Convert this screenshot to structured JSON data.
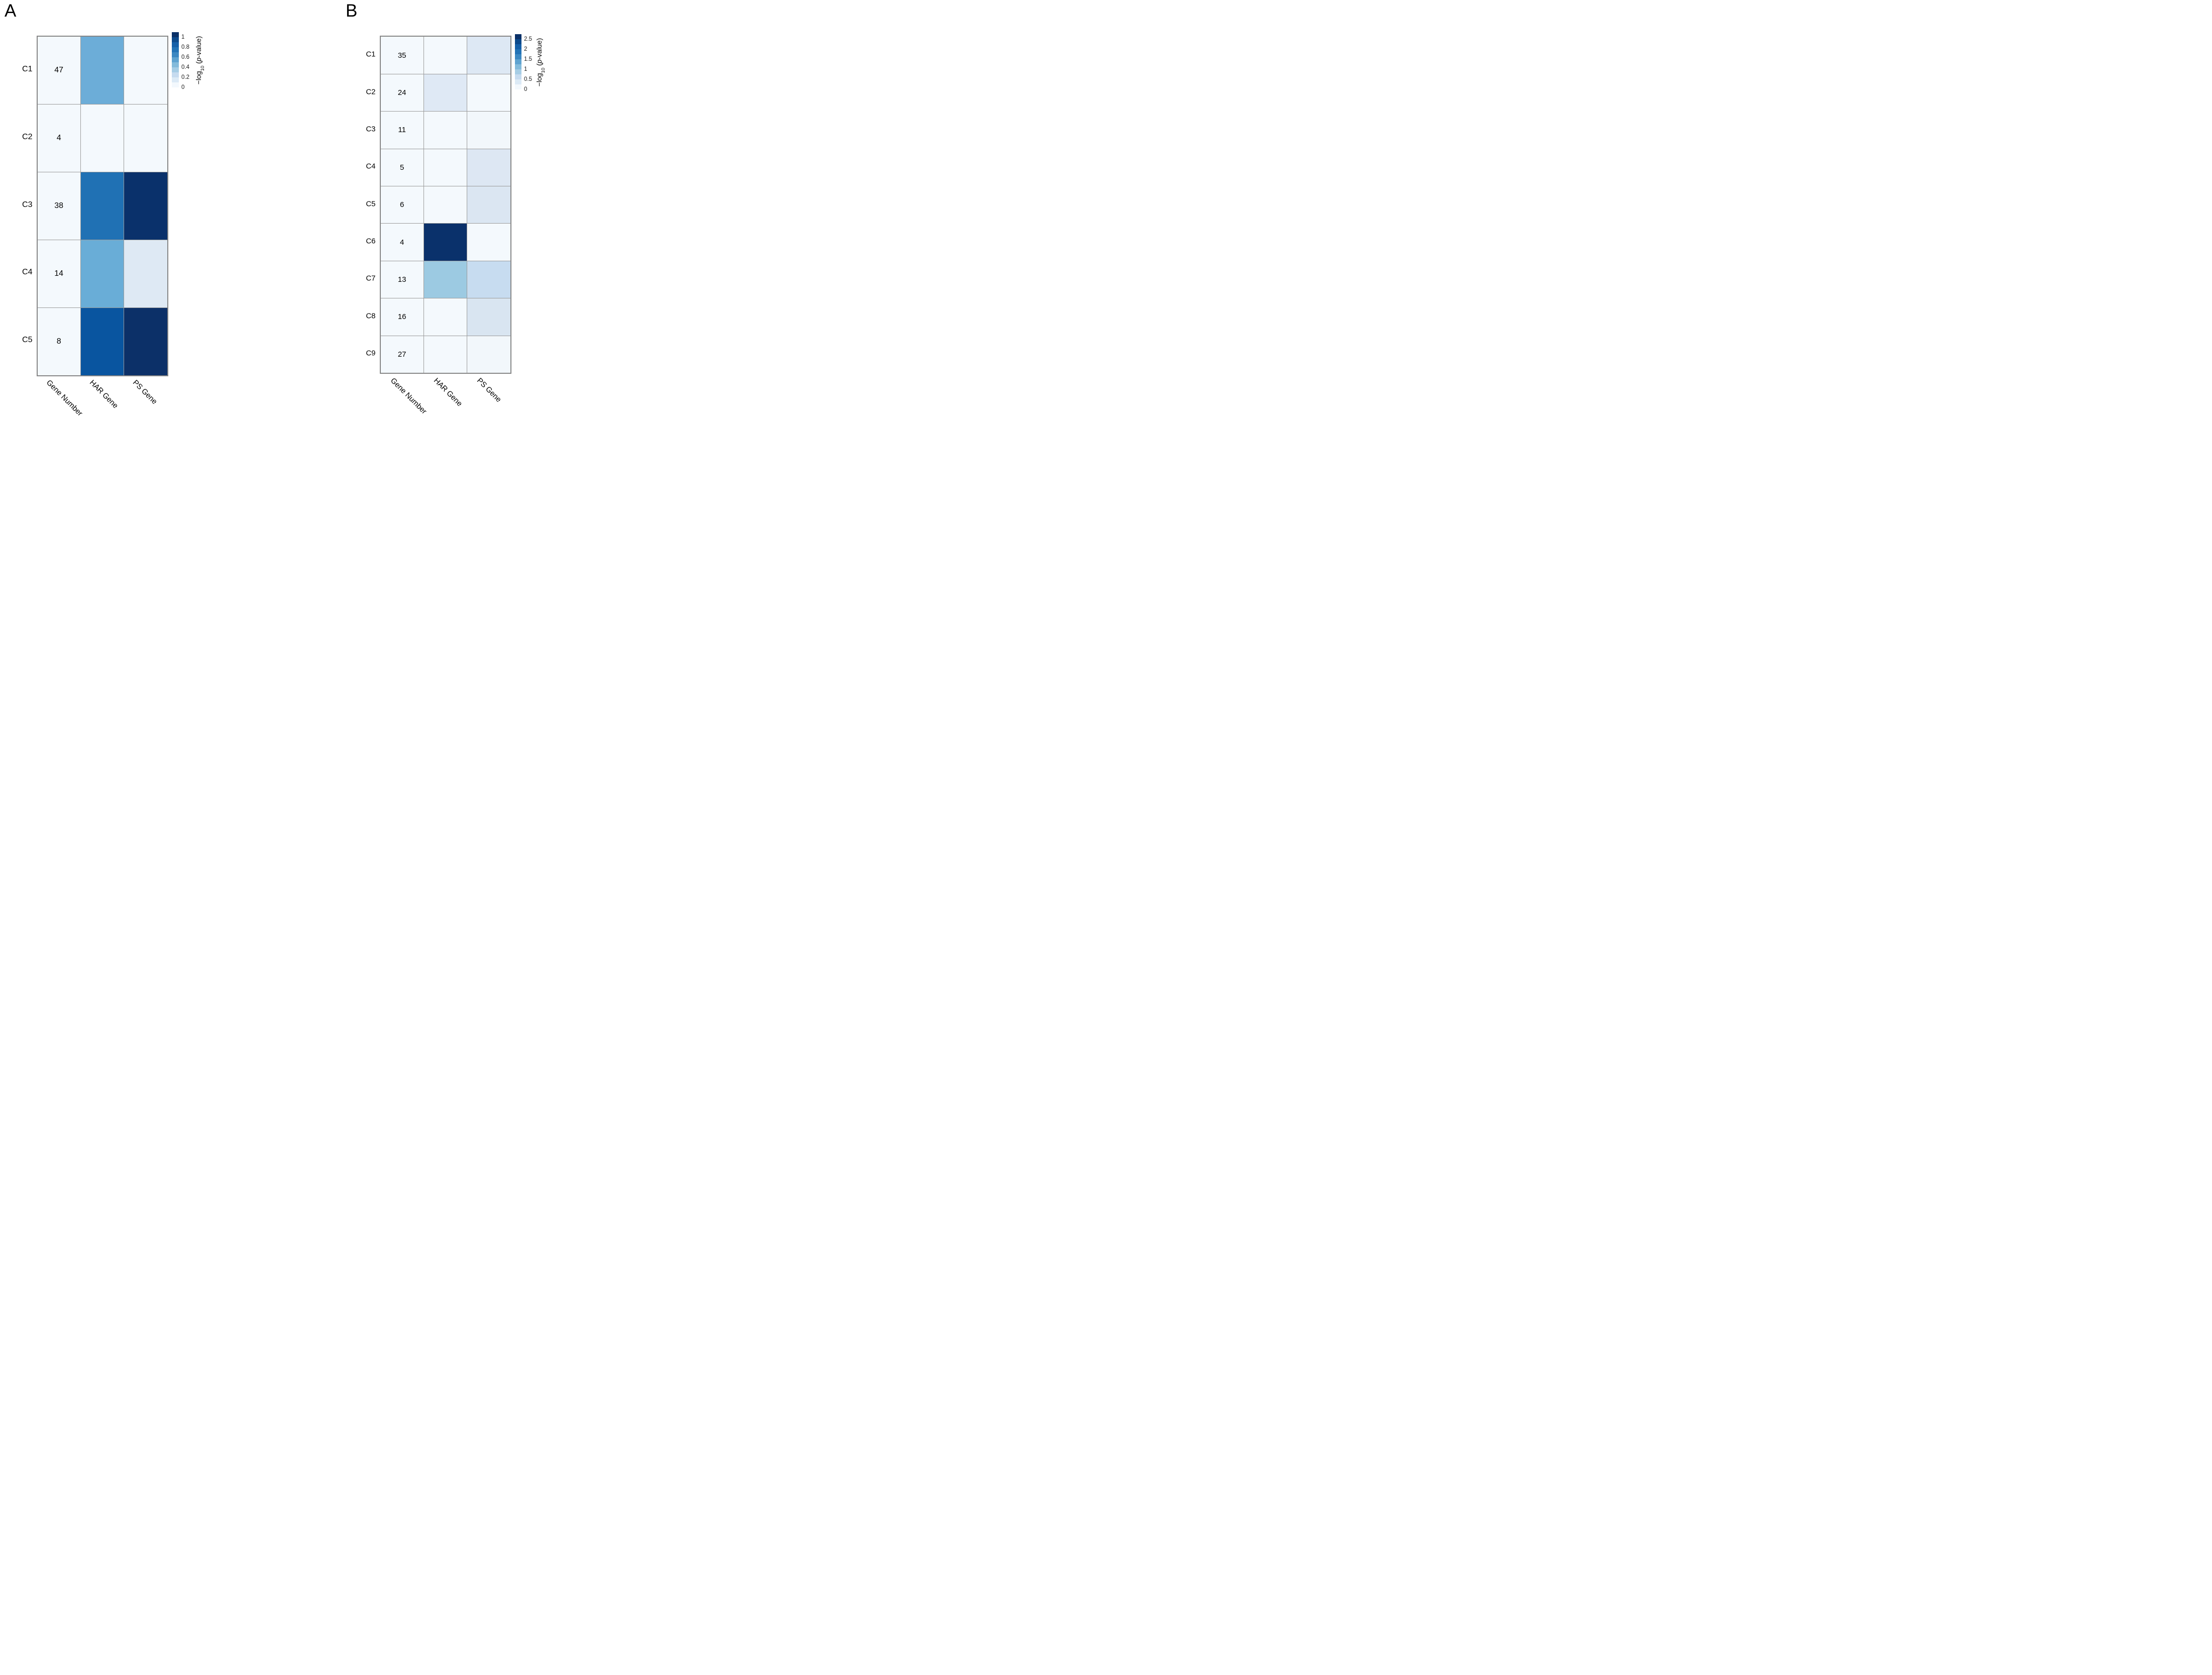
{
  "figure_type": "two-panel heatmap figure",
  "chart_data": [
    {
      "type": "heatmap",
      "panel_label": "A",
      "columns": [
        "Gene Number",
        "HAR Gene",
        "PS Gene"
      ],
      "rows": [
        "C1",
        "C2",
        "C3",
        "C4",
        "C5"
      ],
      "gene_numbers": [
        47,
        4,
        38,
        14,
        8
      ],
      "series": [
        {
          "name": "HAR Gene",
          "values": [
            0.45,
            0.02,
            0.75,
            0.45,
            0.85
          ]
        },
        {
          "name": "PS Gene",
          "values": [
            0.02,
            0.02,
            1.05,
            0.13,
            1.0
          ]
        }
      ],
      "cell_colors": {
        "gene_number": "#f4f9fd",
        "har": [
          "#6cadd8",
          "#f4f9fd",
          "#2071b4",
          "#69add7",
          "#0955a0"
        ],
        "ps": [
          "#f4f9fd",
          "#f4f9fd",
          "#0a316b",
          "#dee9f4",
          "#0c3068"
        ]
      },
      "colorbar": {
        "title_pre": "−log",
        "title_sub": "10",
        "title_open": " (",
        "title_p": "p",
        "title_rest": "-value)",
        "vmax": 1.1,
        "ticks": [
          {
            "label": "1",
            "value": 1.0
          },
          {
            "label": "0.8",
            "value": 0.8
          },
          {
            "label": "0.6",
            "value": 0.6
          },
          {
            "label": "0.4",
            "value": 0.4
          },
          {
            "label": "0.2",
            "value": 0.2
          },
          {
            "label": "0",
            "value": 0.0
          }
        ],
        "segments": [
          "#0a3168",
          "#0d4a8c",
          "#1660a8",
          "#2373b6",
          "#3c88c2",
          "#5fa3d0",
          "#84bbdb",
          "#a6cde5",
          "#c6dbef",
          "#dceaf6",
          "#f3f8fd"
        ]
      },
      "grid_on": true,
      "legend_position": "right"
    },
    {
      "type": "heatmap",
      "panel_label": "B",
      "columns": [
        "Gene Number",
        "HAR Gene",
        "PS Gene"
      ],
      "rows": [
        "C1",
        "C2",
        "C3",
        "C4",
        "C5",
        "C6",
        "C7",
        "C8",
        "C9"
      ],
      "gene_numbers": [
        35,
        24,
        11,
        5,
        6,
        4,
        13,
        16,
        27
      ],
      "series": [
        {
          "name": "HAR Gene",
          "values": [
            0.03,
            0.38,
            0.03,
            0.03,
            0.03,
            2.6,
            1.05,
            0.03,
            0.03
          ]
        },
        {
          "name": "PS Gene",
          "values": [
            0.45,
            0.03,
            0.08,
            0.42,
            0.45,
            0.03,
            0.62,
            0.5,
            0.08
          ]
        }
      ],
      "cell_colors": {
        "gene_number": "#f4f9fd",
        "har": [
          "#f4f9fd",
          "#dfe9f5",
          "#f4f9fd",
          "#f4f9fd",
          "#f4f9fd",
          "#0a316b",
          "#9ccae2",
          "#f4f9fd",
          "#f4f9fd"
        ],
        "ps": [
          "#dde8f4",
          "#f4f9fd",
          "#f2f7fb",
          "#dde7f3",
          "#dbe6f2",
          "#f4f9fd",
          "#c7dcf0",
          "#d9e5f1",
          "#f2f7fb"
        ]
      },
      "colorbar": {
        "title_pre": "−log",
        "title_sub": "10",
        "title_open": " (",
        "title_p": "p",
        "title_rest": "-value)",
        "vmax": 2.75,
        "ticks": [
          {
            "label": "2.5",
            "value": 2.5
          },
          {
            "label": "2",
            "value": 2.0
          },
          {
            "label": "1.5",
            "value": 1.5
          },
          {
            "label": "1",
            "value": 1.0
          },
          {
            "label": "0.5",
            "value": 0.5
          },
          {
            "label": "0",
            "value": 0.0
          }
        ],
        "segments": [
          "#0a3168",
          "#0d4a8c",
          "#1660a8",
          "#2373b6",
          "#3c88c2",
          "#5fa3d0",
          "#84bbdb",
          "#a6cde5",
          "#c6dbef",
          "#dceaf6",
          "#f3f8fd"
        ]
      },
      "grid_on": true,
      "legend_position": "right"
    }
  ]
}
